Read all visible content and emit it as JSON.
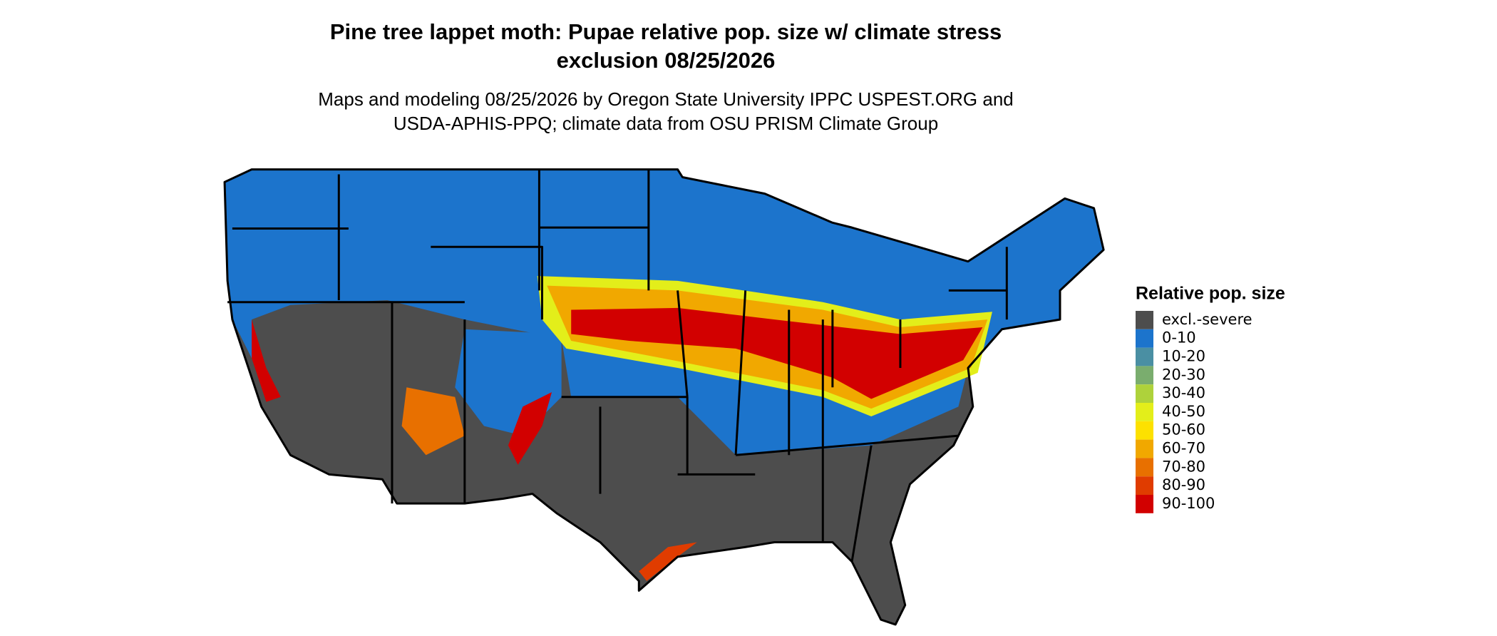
{
  "header": {
    "title": [
      "Pine tree lappet moth: Pupae relative pop. size w/ climate stress",
      "exclusion 08/25/2026"
    ],
    "subtitle": [
      "Maps and modeling 08/25/2026 by Oregon State University IPPC USPEST.ORG and",
      "USDA-APHIS-PPQ; climate data from OSU PRISM Climate Group"
    ]
  },
  "legend": {
    "title": "Relative pop. size",
    "items": [
      {
        "label": "excl.-severe",
        "color": "#4d4d4d"
      },
      {
        "label": "0-10",
        "color": "#1c74cc"
      },
      {
        "label": "10-20",
        "color": "#4a8fa3"
      },
      {
        "label": "20-30",
        "color": "#7aad6e"
      },
      {
        "label": "30-40",
        "color": "#aed23b"
      },
      {
        "label": "40-50",
        "color": "#e3ee1a"
      },
      {
        "label": "50-60",
        "color": "#fde100"
      },
      {
        "label": "60-70",
        "color": "#f1a800"
      },
      {
        "label": "70-80",
        "color": "#e87000"
      },
      {
        "label": "80-90",
        "color": "#e03c00"
      },
      {
        "label": "90-100",
        "color": "#d20000"
      }
    ]
  }
}
